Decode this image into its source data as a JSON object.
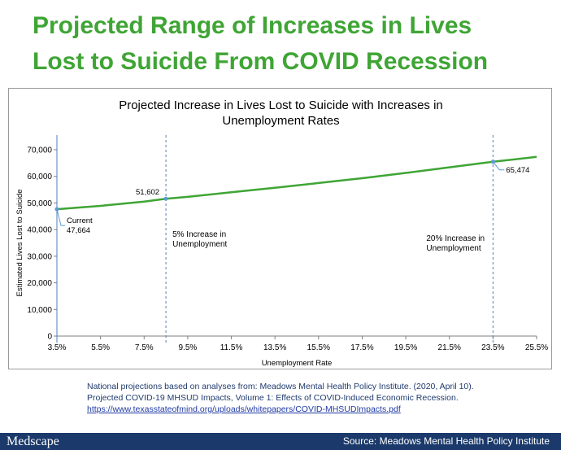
{
  "slide": {
    "title_line1": "Projected Range of Increases in Lives",
    "title_line2": "Lost to Suicide From COVID Recession"
  },
  "chart_data": {
    "type": "line",
    "title_line1": "Projected Increase in Lives Lost to Suicide with Increases in",
    "title_line2": "Unemployment Rates",
    "xlabel": "Unemployment Rate",
    "ylabel": "Estimated Lives Lost to Suicide",
    "x_ticks": [
      "3.5%",
      "5.5%",
      "7.5%",
      "9.5%",
      "11.5%",
      "13.5%",
      "15.5%",
      "17.5%",
      "19.5%",
      "21.5%",
      "23.5%",
      "25.5%"
    ],
    "x_tick_values": [
      3.5,
      5.5,
      7.5,
      9.5,
      11.5,
      13.5,
      15.5,
      17.5,
      19.5,
      21.5,
      23.5,
      25.5
    ],
    "y_ticks": [
      "0",
      "10,000",
      "20,000",
      "30,000",
      "40,000",
      "50,000",
      "60,000",
      "70,000"
    ],
    "y_tick_values": [
      0,
      10000,
      20000,
      30000,
      40000,
      50000,
      60000,
      70000
    ],
    "xlim": [
      3.5,
      25.5
    ],
    "ylim": [
      0,
      70000
    ],
    "grid": false,
    "line_color": "#3fa535",
    "series": [
      {
        "x": [
          3.5,
          5.5,
          7.5,
          8.5,
          9.5,
          11.5,
          13.5,
          15.5,
          17.5,
          19.5,
          21.5,
          23.5,
          25.5
        ],
        "values": [
          47664,
          48900,
          50500,
          51602,
          52300,
          54000,
          55700,
          57500,
          59300,
          61300,
          63400,
          65474,
          67300
        ]
      }
    ],
    "reference_lines": [
      {
        "x": 3.5,
        "label_line1": "",
        "label_line2": ""
      },
      {
        "x": 8.5,
        "label_line1": "5% Increase in",
        "label_line2": "Unemployment"
      },
      {
        "x": 23.5,
        "label_line1": "20% Increase in",
        "label_line2": "Unemployment"
      }
    ],
    "point_annotations": [
      {
        "x": 3.5,
        "y": 47664,
        "label_line1": "Current",
        "label_line2": "47,664"
      },
      {
        "x": 8.5,
        "y": 51602,
        "label_line1": "51,602",
        "label_line2": ""
      },
      {
        "x": 23.5,
        "y": 65474,
        "label_line1": "65,474",
        "label_line2": ""
      }
    ]
  },
  "source_note": {
    "text": "National projections based on analyses from: Meadows Mental Health Policy Institute. (2020, April 10). Projected COVID-19 MHSUD Impacts, Volume 1: Effects of COVID-Induced Economic Recession.",
    "link_text": "https://www.texasstateofmind.org/uploads/whitepapers/COVID-MHSUDImpacts.pdf"
  },
  "footer": {
    "logo": "Medscape",
    "source": "Source: Meadows Mental Health Policy Institute",
    "bg_color": "#1b3a6b"
  }
}
